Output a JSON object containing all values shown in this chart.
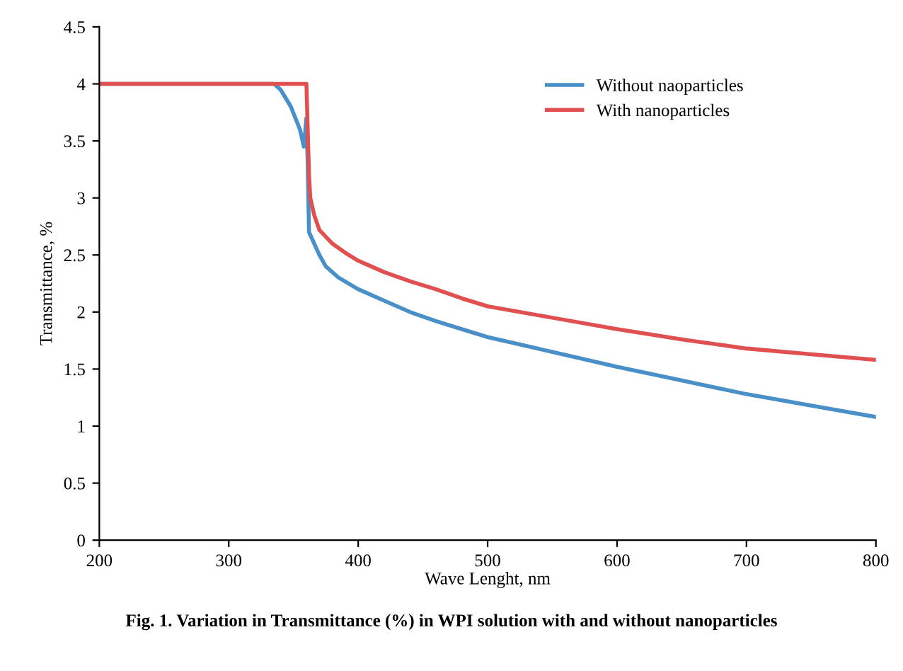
{
  "chart_data": {
    "type": "line",
    "xlabel": "Wave Lenght, nm",
    "ylabel": "Transmittance, %",
    "annotations": [
      "Fig. 1. Variation in Transmittance (%) in WPI solution with and without nanoparticles"
    ],
    "series": [
      {
        "name": "Without naoparticles",
        "color": "#4a90c8",
        "x": [
          200,
          335,
          340,
          348,
          355,
          358,
          360,
          361,
          362,
          366,
          370,
          375,
          385,
          400,
          420,
          440,
          460,
          480,
          500,
          550,
          600,
          650,
          700,
          750,
          800
        ],
        "values": [
          4,
          4,
          3.95,
          3.8,
          3.6,
          3.45,
          3.7,
          3.3,
          2.7,
          2.6,
          2.5,
          2.4,
          2.3,
          2.2,
          2.1,
          2.0,
          1.92,
          1.85,
          1.78,
          1.65,
          1.52,
          1.4,
          1.28,
          1.18,
          1.08
        ]
      },
      {
        "name": "With nanoparticles",
        "color": "#e05050",
        "x": [
          200,
          360,
          361,
          362,
          363,
          366,
          370,
          380,
          390,
          400,
          420,
          440,
          460,
          480,
          500,
          550,
          600,
          650,
          700,
          750,
          800
        ],
        "values": [
          4,
          4,
          3.6,
          3.2,
          3.0,
          2.85,
          2.72,
          2.6,
          2.52,
          2.45,
          2.35,
          2.27,
          2.2,
          2.12,
          2.05,
          1.95,
          1.85,
          1.76,
          1.68,
          1.63,
          1.58
        ]
      }
    ],
    "xlim": [
      200,
      800
    ],
    "ylim": [
      0,
      4.5
    ],
    "xticks": [
      200,
      300,
      400,
      500,
      600,
      700,
      800
    ],
    "yticks": [
      0,
      0.5,
      1,
      1.5,
      2,
      2.5,
      3,
      3.5,
      4,
      4.5
    ],
    "grid": false,
    "legend": "top right",
    "marker": "none",
    "line_style": "solid"
  }
}
